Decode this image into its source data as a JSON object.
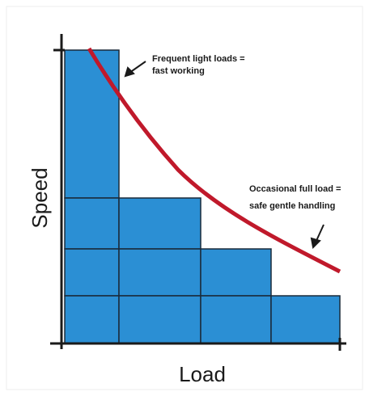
{
  "diagram": {
    "y_axis_label": "Speed",
    "x_axis_label": "Load",
    "annotations": [
      {
        "lines": [
          "Frequent light loads =",
          "fast working"
        ]
      },
      {
        "lines": [
          "Occasional full load =",
          "safe gentle handling"
        ]
      }
    ]
  }
}
